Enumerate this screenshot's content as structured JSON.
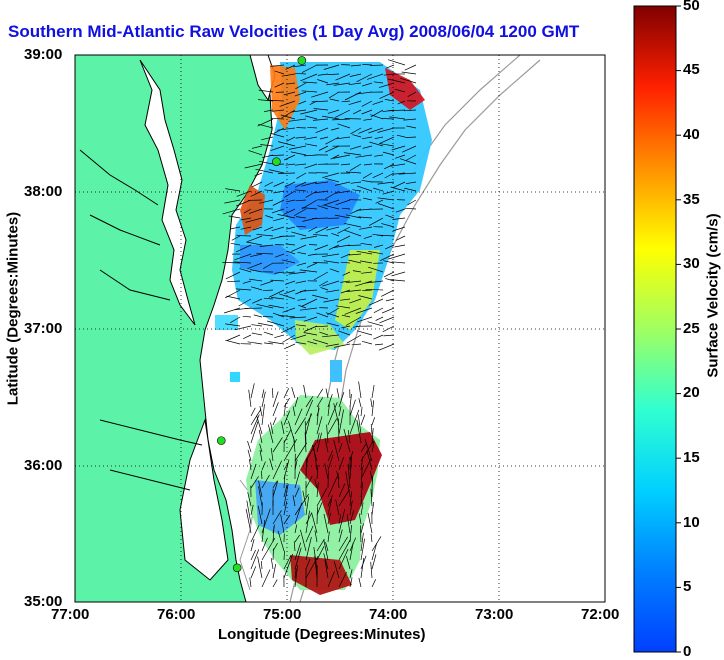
{
  "title": "Southern Mid-Atlantic Raw Velocities (1 Day Avg) 2008/06/04 1200 GMT",
  "xlabel": "Longitude (Degrees:Minutes)",
  "ylabel": "Latitude (Degrees:Minutes)",
  "colorbar_label": "Surface Velocity (cm/s)",
  "x_ticks": [
    "77:00",
    "76:00",
    "75:00",
    "74:00",
    "73:00",
    "72:00"
  ],
  "y_ticks": [
    "39:00",
    "38:00",
    "37:00",
    "36:00",
    "35:00"
  ],
  "colorbar_ticks": [
    "50",
    "45",
    "40",
    "35",
    "30",
    "25",
    "20",
    "15",
    "10",
    "5",
    "0"
  ],
  "colors": {
    "land": "#5cf2a8",
    "title": "#1010e0",
    "coast": "#000000",
    "bathymetry": "#9a9a9a",
    "station": "#22dd22"
  },
  "colormap": "jet",
  "clim": [
    0,
    50
  ],
  "xlim": [
    -77,
    -72
  ],
  "ylim": [
    35,
    39
  ],
  "grid": true,
  "stations": [
    {
      "lon": -74.86,
      "lat": 38.96
    },
    {
      "lon": -75.1,
      "lat": 38.22
    },
    {
      "lon": -75.62,
      "lat": 36.18
    },
    {
      "lon": -75.47,
      "lat": 35.25
    }
  ]
}
